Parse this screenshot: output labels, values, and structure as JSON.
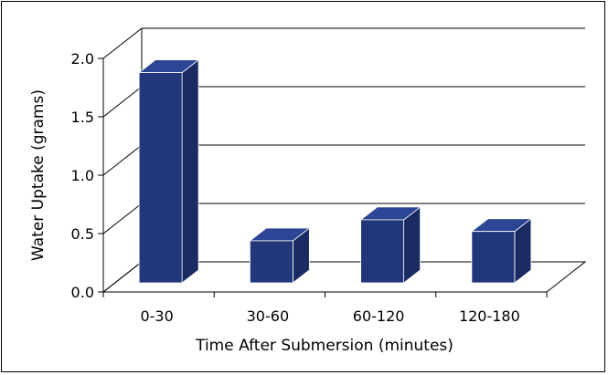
{
  "chart_data": {
    "type": "bar",
    "categories": [
      "0-30",
      "30-60",
      "60-120",
      "120-180"
    ],
    "values": [
      1.8,
      0.36,
      0.54,
      0.44
    ],
    "title": "",
    "xlabel": "Time After Submersion (minutes)",
    "ylabel": "Water Uptake (grams)",
    "ylim": [
      0,
      2.0
    ],
    "yticks": [
      "0.0",
      "0.5",
      "1.0",
      "1.5",
      "2.0"
    ],
    "ytick_values": [
      0,
      0.5,
      1.0,
      1.5,
      2.0
    ],
    "grid": true,
    "three_d": true,
    "colors": {
      "bar_front": "#22377a",
      "bar_top": "#2d4595",
      "bar_side": "#1a2b62",
      "bar_edge": "#ffffff",
      "grid": "#000000"
    }
  }
}
